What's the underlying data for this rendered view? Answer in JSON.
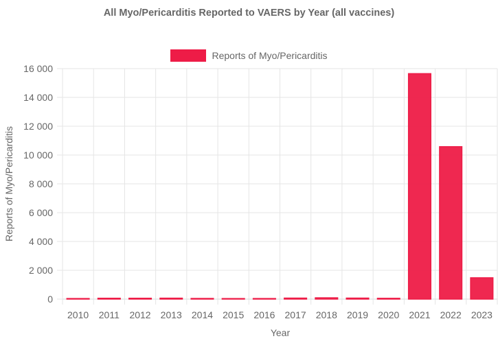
{
  "chart_data": {
    "type": "bar",
    "title": "All Myo/Pericarditis Reported to VAERS by Year (all vaccines)",
    "xlabel": "Year",
    "ylabel": "Reports of Myo/Pericarditis",
    "legend": {
      "position": "top",
      "entries": [
        "Reports of Myo/Pericarditis"
      ]
    },
    "grid": true,
    "ylim": [
      0,
      16000
    ],
    "yticks": [
      "0",
      "2 000",
      "4 000",
      "6 000",
      "8 000",
      "10 000",
      "12 000",
      "14 000",
      "16 000"
    ],
    "categories": [
      "2010",
      "2011",
      "2012",
      "2013",
      "2014",
      "2015",
      "2016",
      "2017",
      "2018",
      "2019",
      "2020",
      "2021",
      "2022",
      "2023"
    ],
    "series": [
      {
        "name": "Reports of Myo/Pericarditis",
        "color": "#ee1c47",
        "values": [
          40,
          60,
          60,
          65,
          45,
          5,
          40,
          70,
          90,
          70,
          55,
          15650,
          10580,
          1480
        ]
      }
    ]
  }
}
